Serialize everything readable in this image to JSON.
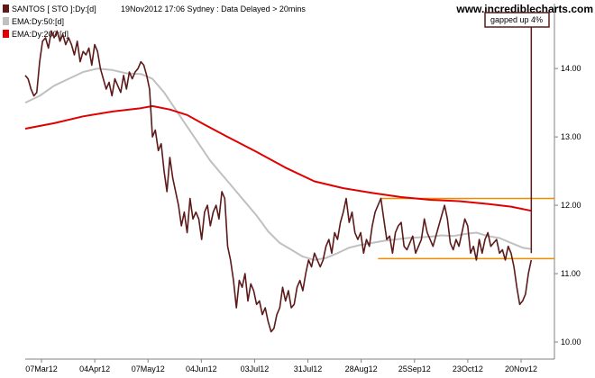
{
  "chart_data": {
    "type": "line",
    "legend": [
      {
        "text": "SANTOS [ STO ]:Dy:[d]",
        "color": "#5c1a1a"
      },
      {
        "text": "EMA:Dy:50:[d]",
        "color": "#c0c0c0"
      },
      {
        "text": "EMA:Dy:200:[d]",
        "color": "#e00000"
      }
    ],
    "header_info": "19Nov2012 17:06 Sydney : Data Delayed > 20mins",
    "watermark": "www.incrediblecharts.com",
    "annotation": "gapped up 4%",
    "y_ticks": [
      "14.00",
      "13.00",
      "12.00",
      "11.00",
      "10.00"
    ],
    "x_ticks": [
      "07Mar12",
      "04Apr12",
      "07May12",
      "04Jun12",
      "03Jul12",
      "31Jul12",
      "28Aug12",
      "25Sep12",
      "23Oct12",
      "20Nov12"
    ],
    "ylim": [
      9.75,
      14.95
    ],
    "xlim": [
      0,
      183
    ],
    "axis_color": "#808080",
    "horizontal_lines": [
      {
        "y": 12.1,
        "x_start": 123,
        "x_end": 183,
        "color": "#f08c00"
      },
      {
        "y": 11.22,
        "x_start": 122,
        "x_end": 183,
        "color": "#f08c00"
      }
    ],
    "series": [
      {
        "name": "SANTOS [ STO ]",
        "color": "#5c1a1a",
        "points": [
          [
            0,
            13.9
          ],
          [
            1,
            13.85
          ],
          [
            2,
            13.7
          ],
          [
            3,
            13.6
          ],
          [
            4,
            13.65
          ],
          [
            5,
            14.1
          ],
          [
            6,
            14.4
          ],
          [
            7,
            14.45
          ],
          [
            8,
            14.3
          ],
          [
            9,
            14.55
          ],
          [
            10,
            14.45
          ],
          [
            11,
            14.55
          ],
          [
            12,
            14.4
          ],
          [
            13,
            14.5
          ],
          [
            14,
            14.35
          ],
          [
            15,
            14.45
          ],
          [
            16,
            14.35
          ],
          [
            17,
            14.2
          ],
          [
            18,
            14.4
          ],
          [
            19,
            14.1
          ],
          [
            20,
            14.25
          ],
          [
            21,
            14.2
          ],
          [
            22,
            14.3
          ],
          [
            23,
            14.05
          ],
          [
            24,
            14.35
          ],
          [
            25,
            14.25
          ],
          [
            26,
            14.0
          ],
          [
            27,
            13.85
          ],
          [
            28,
            13.7
          ],
          [
            29,
            13.8
          ],
          [
            30,
            13.6
          ],
          [
            31,
            13.85
          ],
          [
            32,
            13.75
          ],
          [
            33,
            13.65
          ],
          [
            34,
            13.9
          ],
          [
            35,
            13.7
          ],
          [
            36,
            13.95
          ],
          [
            37,
            13.85
          ],
          [
            38,
            13.95
          ],
          [
            39,
            14.0
          ],
          [
            40,
            14.1
          ],
          [
            41,
            14.05
          ],
          [
            42,
            13.9
          ],
          [
            43,
            13.7
          ],
          [
            44,
            13.0
          ],
          [
            45,
            13.1
          ],
          [
            46,
            12.8
          ],
          [
            47,
            12.9
          ],
          [
            48,
            12.5
          ],
          [
            49,
            12.2
          ],
          [
            50,
            12.7
          ],
          [
            51,
            12.4
          ],
          [
            52,
            12.2
          ],
          [
            53,
            12.0
          ],
          [
            54,
            11.7
          ],
          [
            55,
            11.9
          ],
          [
            56,
            11.6
          ],
          [
            57,
            12.1
          ],
          [
            58,
            11.8
          ],
          [
            59,
            11.9
          ],
          [
            60,
            11.8
          ],
          [
            61,
            11.5
          ],
          [
            62,
            11.9
          ],
          [
            63,
            12.0
          ],
          [
            64,
            11.7
          ],
          [
            65,
            11.9
          ],
          [
            66,
            12.0
          ],
          [
            67,
            11.8
          ],
          [
            68,
            12.2
          ],
          [
            69,
            12.1
          ],
          [
            70,
            11.4
          ],
          [
            71,
            11.2
          ],
          [
            72,
            10.9
          ],
          [
            73,
            10.5
          ],
          [
            74,
            10.9
          ],
          [
            75,
            10.8
          ],
          [
            76,
            11.0
          ],
          [
            77,
            10.6
          ],
          [
            78,
            10.85
          ],
          [
            79,
            10.75
          ],
          [
            80,
            10.55
          ],
          [
            81,
            10.6
          ],
          [
            82,
            10.4
          ],
          [
            83,
            10.5
          ],
          [
            84,
            10.3
          ],
          [
            85,
            10.15
          ],
          [
            86,
            10.2
          ],
          [
            87,
            10.4
          ],
          [
            88,
            10.5
          ],
          [
            89,
            10.8
          ],
          [
            90,
            10.6
          ],
          [
            91,
            10.75
          ],
          [
            92,
            10.5
          ],
          [
            93,
            10.55
          ],
          [
            94,
            10.8
          ],
          [
            95,
            10.9
          ],
          [
            96,
            10.75
          ],
          [
            97,
            11.0
          ],
          [
            98,
            11.2
          ],
          [
            99,
            11.1
          ],
          [
            100,
            11.3
          ],
          [
            101,
            11.2
          ],
          [
            102,
            11.1
          ],
          [
            103,
            11.2
          ],
          [
            104,
            11.4
          ],
          [
            105,
            11.5
          ],
          [
            106,
            11.3
          ],
          [
            107,
            11.6
          ],
          [
            108,
            11.5
          ],
          [
            109,
            11.75
          ],
          [
            110,
            11.9
          ],
          [
            111,
            12.1
          ],
          [
            112,
            11.75
          ],
          [
            113,
            11.9
          ],
          [
            114,
            11.6
          ],
          [
            115,
            11.5
          ],
          [
            116,
            11.6
          ],
          [
            117,
            11.3
          ],
          [
            118,
            11.5
          ],
          [
            119,
            11.4
          ],
          [
            120,
            11.7
          ],
          [
            121,
            11.9
          ],
          [
            122,
            12.0
          ],
          [
            123,
            12.1
          ],
          [
            124,
            11.8
          ],
          [
            125,
            11.5
          ],
          [
            126,
            11.55
          ],
          [
            127,
            11.3
          ],
          [
            128,
            11.6
          ],
          [
            129,
            11.7
          ],
          [
            130,
            11.75
          ],
          [
            131,
            11.4
          ],
          [
            132,
            11.35
          ],
          [
            133,
            11.45
          ],
          [
            134,
            11.55
          ],
          [
            135,
            11.3
          ],
          [
            136,
            11.4
          ],
          [
            137,
            11.5
          ],
          [
            138,
            11.8
          ],
          [
            139,
            11.6
          ],
          [
            140,
            11.5
          ],
          [
            141,
            11.4
          ],
          [
            142,
            11.55
          ],
          [
            143,
            11.7
          ],
          [
            144,
            11.85
          ],
          [
            145,
            12.0
          ],
          [
            146,
            11.8
          ],
          [
            147,
            11.45
          ],
          [
            148,
            11.35
          ],
          [
            149,
            11.5
          ],
          [
            150,
            11.4
          ],
          [
            151,
            11.6
          ],
          [
            152,
            11.8
          ],
          [
            153,
            11.7
          ],
          [
            154,
            11.3
          ],
          [
            155,
            11.4
          ],
          [
            156,
            11.2
          ],
          [
            157,
            11.5
          ],
          [
            158,
            11.3
          ],
          [
            159,
            11.5
          ],
          [
            160,
            11.6
          ],
          [
            161,
            11.4
          ],
          [
            162,
            11.45
          ],
          [
            163,
            11.5
          ],
          [
            164,
            11.3
          ],
          [
            165,
            11.35
          ],
          [
            166,
            11.2
          ],
          [
            167,
            11.4
          ],
          [
            168,
            11.3
          ],
          [
            169,
            11.1
          ],
          [
            170,
            10.8
          ],
          [
            171,
            10.55
          ],
          [
            172,
            10.6
          ],
          [
            173,
            10.7
          ],
          [
            174,
            11.0
          ],
          [
            175,
            11.2
          ]
        ]
      },
      {
        "name": "EMA:Dy:50",
        "color": "#c0c0c0",
        "points": [
          [
            0,
            13.5
          ],
          [
            5,
            13.6
          ],
          [
            10,
            13.75
          ],
          [
            15,
            13.85
          ],
          [
            20,
            13.95
          ],
          [
            25,
            14.0
          ],
          [
            30,
            13.98
          ],
          [
            35,
            13.93
          ],
          [
            40,
            13.92
          ],
          [
            44,
            13.85
          ],
          [
            48,
            13.65
          ],
          [
            52,
            13.4
          ],
          [
            56,
            13.15
          ],
          [
            60,
            12.9
          ],
          [
            64,
            12.65
          ],
          [
            68,
            12.45
          ],
          [
            72,
            12.25
          ],
          [
            76,
            12.05
          ],
          [
            80,
            11.85
          ],
          [
            84,
            11.62
          ],
          [
            88,
            11.45
          ],
          [
            92,
            11.35
          ],
          [
            96,
            11.25
          ],
          [
            100,
            11.2
          ],
          [
            104,
            11.23
          ],
          [
            108,
            11.3
          ],
          [
            112,
            11.38
          ],
          [
            116,
            11.42
          ],
          [
            120,
            11.45
          ],
          [
            124,
            11.48
          ],
          [
            128,
            11.5
          ],
          [
            132,
            11.52
          ],
          [
            136,
            11.53
          ],
          [
            140,
            11.54
          ],
          [
            144,
            11.56
          ],
          [
            148,
            11.55
          ],
          [
            152,
            11.58
          ],
          [
            156,
            11.6
          ],
          [
            160,
            11.55
          ],
          [
            164,
            11.52
          ],
          [
            168,
            11.45
          ],
          [
            172,
            11.38
          ],
          [
            175,
            11.36
          ]
        ]
      },
      {
        "name": "EMA:Dy:200",
        "color": "#e00000",
        "points": [
          [
            0,
            13.12
          ],
          [
            10,
            13.2
          ],
          [
            20,
            13.3
          ],
          [
            30,
            13.37
          ],
          [
            40,
            13.42
          ],
          [
            44,
            13.45
          ],
          [
            50,
            13.4
          ],
          [
            56,
            13.32
          ],
          [
            62,
            13.18
          ],
          [
            70,
            13.0
          ],
          [
            80,
            12.78
          ],
          [
            90,
            12.55
          ],
          [
            100,
            12.35
          ],
          [
            110,
            12.25
          ],
          [
            120,
            12.18
          ],
          [
            130,
            12.12
          ],
          [
            140,
            12.08
          ],
          [
            150,
            12.06
          ],
          [
            160,
            12.02
          ],
          [
            168,
            11.98
          ],
          [
            175,
            11.92
          ]
        ]
      }
    ],
    "gap_marker": {
      "x": 175,
      "y_from": 11.3,
      "y_to": 14.95,
      "color": "#5c1a1a"
    }
  }
}
